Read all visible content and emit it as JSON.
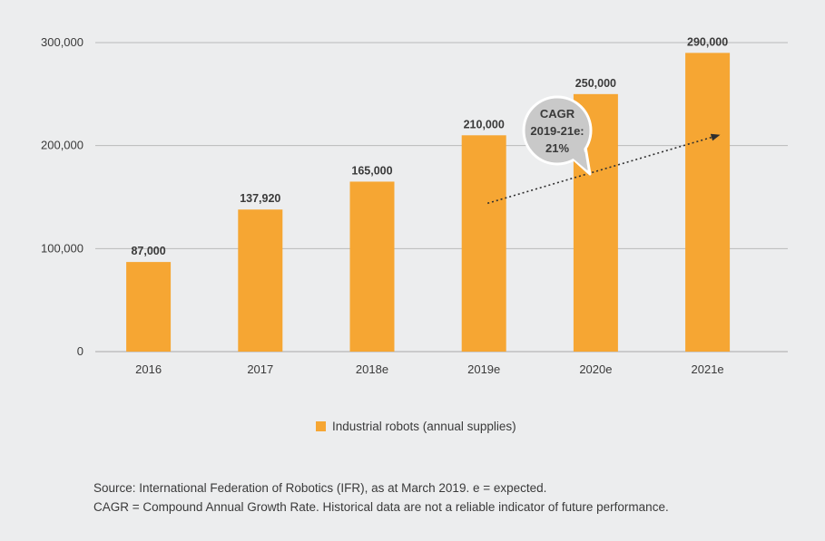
{
  "colors": {
    "background": "#ecedee",
    "bar": "#f6a633",
    "grid": "#b9b9b9",
    "axis": "#a8a8a8",
    "text": "#3a3a3a",
    "bubble_fill": "#c9c9c9",
    "bubble_stroke": "#ffffff",
    "arrow": "#2f2f2f"
  },
  "chart_data": {
    "type": "bar",
    "title": "",
    "xlabel": "",
    "ylabel": "",
    "categories": [
      "2016",
      "2017",
      "2018e",
      "2019e",
      "2020e",
      "2021e"
    ],
    "values": [
      87000,
      137920,
      165000,
      210000,
      250000,
      290000
    ],
    "data_labels": [
      "87,000",
      "137,920",
      "165,000",
      "210,000",
      "250,000",
      "290,000"
    ],
    "ylim": [
      0,
      300000
    ],
    "yticks": [
      0,
      100000,
      200000,
      300000
    ],
    "ytick_labels": [
      "0",
      "100,000",
      "200,000",
      "300,000"
    ],
    "grid": true,
    "legend": {
      "placement": "bottom-center",
      "entries": [
        "Industrial robots (annual supplies)"
      ]
    },
    "annotation": {
      "lines": [
        "CAGR",
        "2019-21e:",
        "21%"
      ],
      "arrow_from": {
        "category": "2019e",
        "value": 144000
      },
      "arrow_to": {
        "category": "2021e",
        "value": 210000
      }
    }
  },
  "footnotes": [
    "Source: International Federation of Robotics (IFR), as at March 2019. e = expected.",
    "CAGR = Compound Annual Growth Rate. Historical data are not a reliable indicator of future performance."
  ]
}
